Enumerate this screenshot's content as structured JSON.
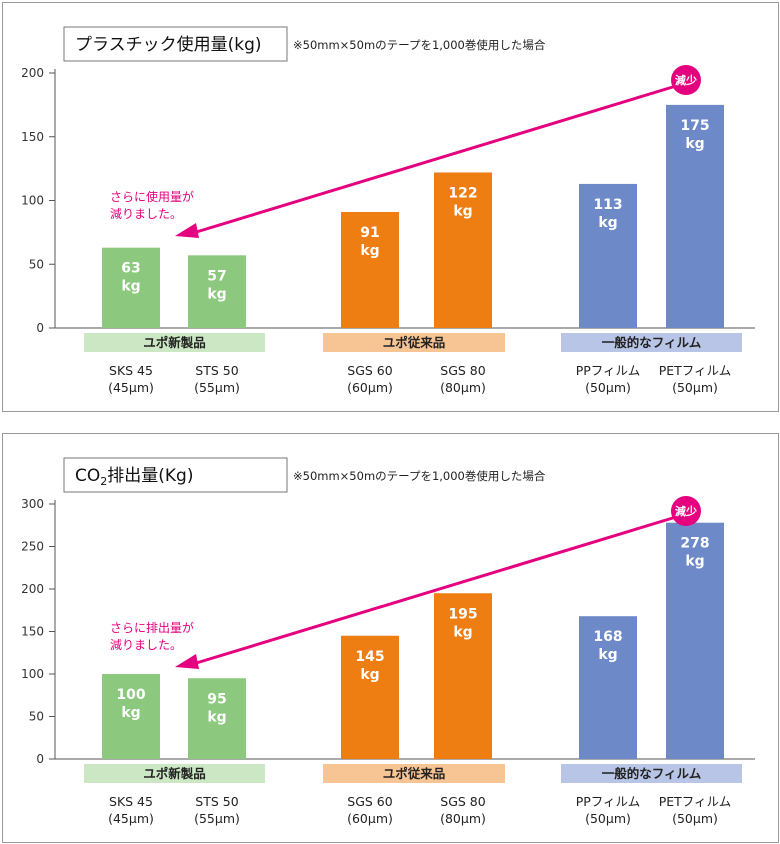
{
  "chart_data": [
    {
      "type": "bar",
      "title": "プラスチック使用量(kg)",
      "subtitle": "※50mm×50mのテープを1,000巻使用した場合",
      "ylim": [
        0,
        200
      ],
      "yticks": [
        0,
        50,
        100,
        150,
        200
      ],
      "categories": [
        "SKS 45",
        "STS 50",
        "SGS 60",
        "SGS 80",
        "PPフィルム",
        "PETフィルム"
      ],
      "sublabels": [
        "(45μm)",
        "(55μm)",
        "(60μm)",
        "(80μm)",
        "(50μm)",
        "(50μm)"
      ],
      "values": [
        63,
        57,
        91,
        122,
        113,
        175
      ],
      "value_labels": [
        "63",
        "57",
        "91",
        "122",
        "113",
        "175"
      ],
      "unit": "kg",
      "groups": [
        {
          "name": "ユポ新製品",
          "color": "#8cc97e",
          "band": "#cbe7c4"
        },
        {
          "name": "ユポ従来品",
          "color": "#ee7d12",
          "band": "#f7c494"
        },
        {
          "name": "一般的なフィルム",
          "color": "#6d89c7",
          "band": "#b8c5e6"
        }
      ],
      "annotation": {
        "line1": "さらに使用量が",
        "line2": "減りました。"
      },
      "badge": "減少"
    },
    {
      "type": "bar",
      "title_main": "CO",
      "title_sub": "2",
      "title_rest": "排出量(Kg)",
      "subtitle": "※50mm×50mのテープを1,000巻使用した場合",
      "ylim": [
        0,
        300
      ],
      "yticks": [
        0,
        50,
        100,
        150,
        200,
        250,
        300
      ],
      "categories": [
        "SKS 45",
        "STS 50",
        "SGS 60",
        "SGS 80",
        "PPフィルム",
        "PETフィルム"
      ],
      "sublabels": [
        "(45μm)",
        "(55μm)",
        "(60μm)",
        "(80μm)",
        "(50μm)",
        "(50μm)"
      ],
      "values": [
        100,
        95,
        145,
        195,
        168,
        278
      ],
      "value_labels": [
        "100",
        "95",
        "145",
        "195",
        "168",
        "278"
      ],
      "unit": "kg",
      "groups": [
        {
          "name": "ユポ新製品",
          "color": "#8cc97e",
          "band": "#cbe7c4"
        },
        {
          "name": "ユポ従来品",
          "color": "#ee7d12",
          "band": "#f7c494"
        },
        {
          "name": "一般的なフィルム",
          "color": "#6d89c7",
          "band": "#b8c5e6"
        }
      ],
      "annotation": {
        "line1": "さらに排出量が",
        "line2": "減りました。"
      },
      "badge": "減少"
    }
  ]
}
